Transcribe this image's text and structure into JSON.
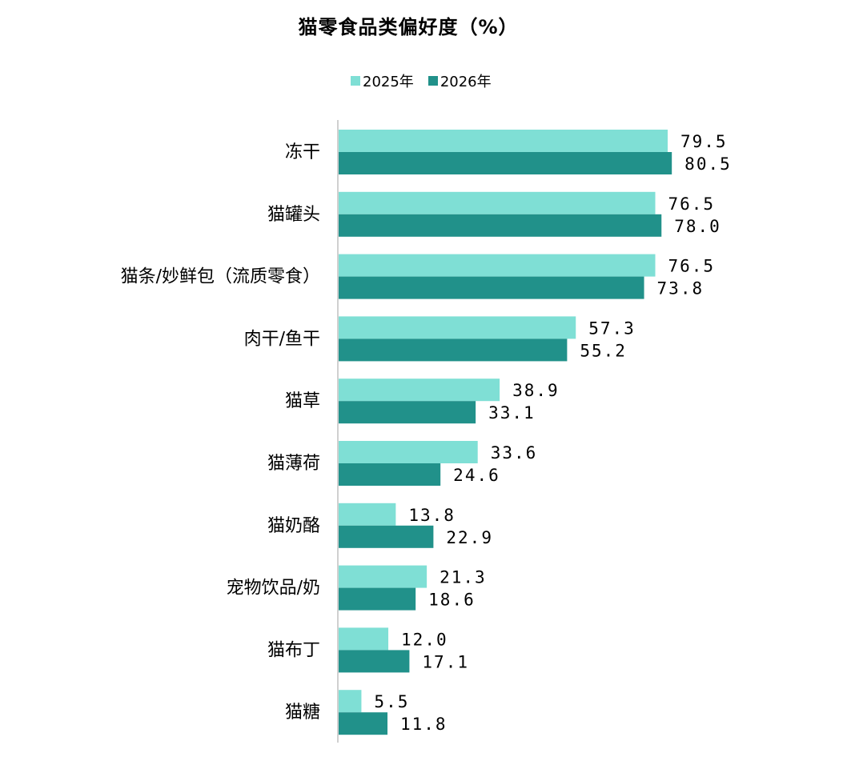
{
  "chart_data": {
    "type": "bar",
    "orientation": "horizontal",
    "title": "猫零食品类偏好度（%）",
    "categories": [
      "冻干",
      "猫罐头",
      "猫条/妙鲜包（流质零食）",
      "肉干/鱼干",
      "猫草",
      "猫薄荷",
      "猫奶酪",
      "宠物饮品/奶",
      "猫布丁",
      "猫糖"
    ],
    "series": [
      {
        "name": "2025年",
        "color": "#7fdfd5",
        "values": [
          79.5,
          76.5,
          76.5,
          57.3,
          38.9,
          33.6,
          13.8,
          21.3,
          12.0,
          5.5
        ]
      },
      {
        "name": "2026年",
        "color": "#21918a",
        "values": [
          80.5,
          78.0,
          73.8,
          55.2,
          33.1,
          24.6,
          22.9,
          18.6,
          17.1,
          11.8
        ]
      }
    ],
    "value_labels": [
      [
        "79.5",
        "76.5",
        "76.5",
        "57.3",
        "38.9",
        "33.6",
        "13.8",
        "21.3",
        "12.0",
        "5.5"
      ],
      [
        "80.5",
        "78.0",
        "73.8",
        "55.2",
        "33.1",
        "24.6",
        "22.9",
        "18.6",
        "17.1",
        "11.8"
      ]
    ],
    "legend_position": "top",
    "grid": false
  }
}
